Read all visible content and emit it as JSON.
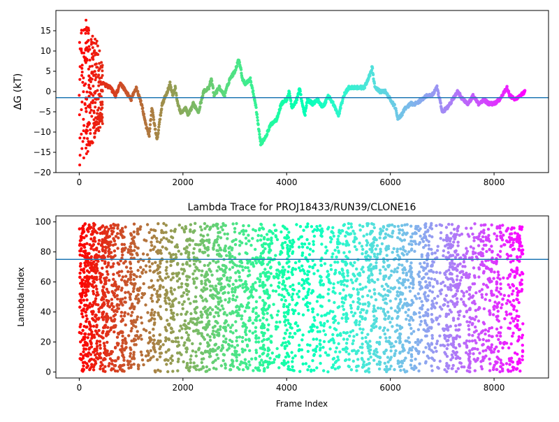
{
  "chart_data": [
    {
      "type": "scatter",
      "title": "",
      "xlabel": "",
      "ylabel": "ΔG (kT)",
      "xlim": [
        -450,
        9050
      ],
      "ylim": [
        -20,
        20
      ],
      "xticks": [
        0,
        2000,
        4000,
        6000,
        8000
      ],
      "yticks": [
        -20,
        -15,
        -10,
        -5,
        0,
        5,
        10,
        15
      ],
      "xtick_labels": [
        "0",
        "2000",
        "4000",
        "6000",
        "8000"
      ],
      "ytick_labels": [
        "−20",
        "−15",
        "−10",
        "−5",
        "0",
        "5",
        "10",
        "15"
      ],
      "hline": -1.5,
      "hline_color": "#1f77b4",
      "colormap": "rainbow",
      "color_note": "points colored by frame index, red at 0 through violet at 8600",
      "trace_anchors": [
        [
          450,
          2
        ],
        [
          600,
          1
        ],
        [
          700,
          -1
        ],
        [
          800,
          2
        ],
        [
          900,
          0
        ],
        [
          1000,
          -2
        ],
        [
          1100,
          1
        ],
        [
          1200,
          -3
        ],
        [
          1300,
          -9
        ],
        [
          1350,
          -11
        ],
        [
          1400,
          -4
        ],
        [
          1450,
          -8
        ],
        [
          1500,
          -12
        ],
        [
          1600,
          -3
        ],
        [
          1700,
          0
        ],
        [
          1750,
          2
        ],
        [
          1800,
          -1
        ],
        [
          1850,
          1
        ],
        [
          1900,
          -3
        ],
        [
          1950,
          -5
        ],
        [
          2000,
          -5
        ],
        [
          2050,
          -4
        ],
        [
          2100,
          -6
        ],
        [
          2200,
          -3
        ],
        [
          2300,
          -5
        ],
        [
          2400,
          0
        ],
        [
          2500,
          1
        ],
        [
          2550,
          3
        ],
        [
          2600,
          -1
        ],
        [
          2700,
          1
        ],
        [
          2800,
          -1
        ],
        [
          2900,
          3
        ],
        [
          3000,
          5
        ],
        [
          3080,
          8
        ],
        [
          3150,
          3
        ],
        [
          3200,
          2
        ],
        [
          3300,
          3
        ],
        [
          3400,
          -3
        ],
        [
          3500,
          -13
        ],
        [
          3600,
          -11
        ],
        [
          3700,
          -8
        ],
        [
          3800,
          -7
        ],
        [
          3900,
          -3
        ],
        [
          4000,
          -2
        ],
        [
          4050,
          0
        ],
        [
          4100,
          -4
        ],
        [
          4200,
          -2
        ],
        [
          4250,
          1
        ],
        [
          4300,
          -3
        ],
        [
          4350,
          -6
        ],
        [
          4400,
          -2
        ],
        [
          4500,
          -3
        ],
        [
          4600,
          -2
        ],
        [
          4700,
          -4
        ],
        [
          4800,
          -1
        ],
        [
          4900,
          -3
        ],
        [
          5000,
          -6
        ],
        [
          5100,
          -1
        ],
        [
          5200,
          1
        ],
        [
          5300,
          1
        ],
        [
          5400,
          1
        ],
        [
          5500,
          1
        ],
        [
          5600,
          4
        ],
        [
          5650,
          6
        ],
        [
          5700,
          1
        ],
        [
          5800,
          0
        ],
        [
          5900,
          0
        ],
        [
          6000,
          -2
        ],
        [
          6100,
          -4
        ],
        [
          6150,
          -7
        ],
        [
          6200,
          -6
        ],
        [
          6300,
          -4
        ],
        [
          6400,
          -3
        ],
        [
          6500,
          -3
        ],
        [
          6600,
          -2
        ],
        [
          6700,
          -1
        ],
        [
          6800,
          -1
        ],
        [
          6900,
          1
        ],
        [
          7000,
          -5
        ],
        [
          7100,
          -4
        ],
        [
          7200,
          -2
        ],
        [
          7300,
          0
        ],
        [
          7400,
          -2
        ],
        [
          7500,
          -3
        ],
        [
          7600,
          -1
        ],
        [
          7700,
          -3
        ],
        [
          7800,
          -2
        ],
        [
          7900,
          -3
        ],
        [
          8000,
          -3
        ],
        [
          8100,
          -2
        ],
        [
          8200,
          0
        ],
        [
          8250,
          1
        ],
        [
          8300,
          -1
        ],
        [
          8400,
          -2
        ],
        [
          8500,
          -1
        ],
        [
          8600,
          0
        ]
      ],
      "early_scatter_range": [
        0,
        450
      ],
      "early_scatter_ylim": [
        -20,
        20
      ]
    },
    {
      "type": "scatter",
      "title": "Lambda Trace for PROJ18433/RUN39/CLONE16",
      "xlabel": "Frame Index",
      "ylabel": "Lambda Index",
      "xlim": [
        -450,
        9050
      ],
      "ylim": [
        -4,
        104
      ],
      "xticks": [
        0,
        2000,
        4000,
        6000,
        8000
      ],
      "yticks": [
        0,
        20,
        40,
        60,
        80,
        100
      ],
      "xtick_labels": [
        "0",
        "2000",
        "4000",
        "6000",
        "8000"
      ],
      "ytick_labels": [
        "0",
        "20",
        "40",
        "60",
        "80",
        "100"
      ],
      "hline": 75,
      "hline_color": "#1f77b4",
      "colormap": "rainbow",
      "color_note": "points colored by frame index, red at 0 through violet at 8600",
      "x_range": [
        0,
        8600
      ],
      "lambda_range": [
        0,
        99
      ]
    }
  ]
}
